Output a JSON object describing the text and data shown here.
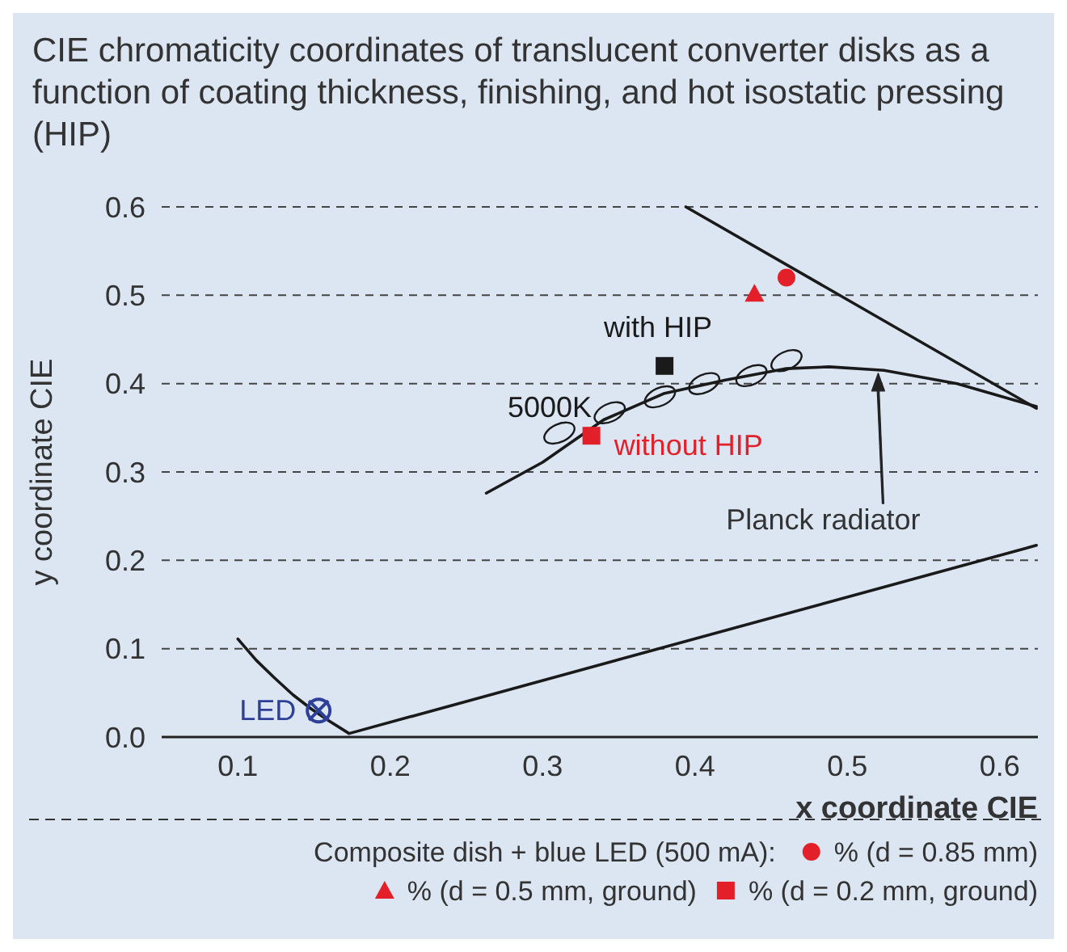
{
  "chart_data": {
    "type": "scatter",
    "title": "CIE chromaticity coordinates of translucent converter disks as a function of coating thickness, finishing, and hot isostatic pressing (HIP)",
    "xlabel": "x coordinate CIE",
    "ylabel": "y coordinate CIE",
    "legend_title": "Composite dish + blue LED (500 mA):",
    "legend": "bottom",
    "grid": "y",
    "xlim": [
      0.05,
      0.625
    ],
    "ylim": [
      0,
      0.6
    ],
    "xticks": [
      0.1,
      0.2,
      0.3,
      0.4,
      0.5,
      0.6
    ],
    "yticks": [
      {
        "value": 0,
        "label": "0.0"
      },
      0.1,
      0.2,
      0.3,
      0.4,
      0.5,
      0.6
    ],
    "series": [
      {
        "type": "line",
        "color": "#1a1a1a",
        "marker": "none",
        "x": [
          0.1,
          0.112,
          0.124,
          0.136,
          0.148,
          0.16,
          0.173,
          0.624
        ],
        "values": [
          0.111,
          0.087,
          0.067,
          0.048,
          0.032,
          0.018,
          0.004,
          0.217
        ]
      },
      {
        "type": "line",
        "color": "#1a1a1a",
        "marker": "none",
        "x": [
          0.394,
          0.624
        ],
        "values": [
          0.6,
          0.372
        ]
      },
      {
        "type": "line",
        "color": "#1a1a1a",
        "marker": "none",
        "x": [
          0.263,
          0.3,
          0.34,
          0.38,
          0.42,
          0.46,
          0.488,
          0.524,
          0.572,
          0.624
        ],
        "values": [
          0.276,
          0.311,
          0.359,
          0.389,
          0.404,
          0.417,
          0.419,
          0.415,
          0.4,
          0.374
        ]
      },
      {
        "color": "#1a1a1a",
        "marker": "circle",
        "x": [
          0.311,
          0.344,
          0.377,
          0.406,
          0.437,
          0.46
        ],
        "values": [
          0.344,
          0.367,
          0.385,
          0.4,
          0.409,
          0.426
        ]
      },
      {
        "name": "% (d = 0.85 mm)",
        "color": "#e3202a",
        "marker": "circle",
        "x": [
          0.46
        ],
        "values": [
          0.52
        ]
      },
      {
        "name": "% (d = 0.5 mm, ground)",
        "color": "#e3202a",
        "marker": "triangle",
        "x": [
          0.439
        ],
        "values": [
          0.502
        ]
      },
      {
        "name": "% (d = 0.2 mm, ground)",
        "color": "#e3202a",
        "marker": "square",
        "x": [
          0.332
        ],
        "values": [
          0.341
        ]
      },
      {
        "color": "#1a1a1a",
        "marker": "square",
        "x": [
          0.38
        ],
        "values": [
          0.42
        ]
      },
      {
        "color": "#2e3f9a",
        "marker": "cross",
        "x": [
          0.153
        ],
        "values": [
          0.03
        ]
      }
    ],
    "annotations": [
      {
        "text": "with HIP",
        "x": 0.38,
        "y": 0.42
      },
      {
        "text": "without HIP",
        "x": 0.332,
        "y": 0.341
      },
      {
        "text": "5000K",
        "x": 0.311,
        "y": 0.344
      },
      "Planck radiator",
      {
        "text": "LED",
        "x": 0.153,
        "y": 0.03
      }
    ]
  }
}
